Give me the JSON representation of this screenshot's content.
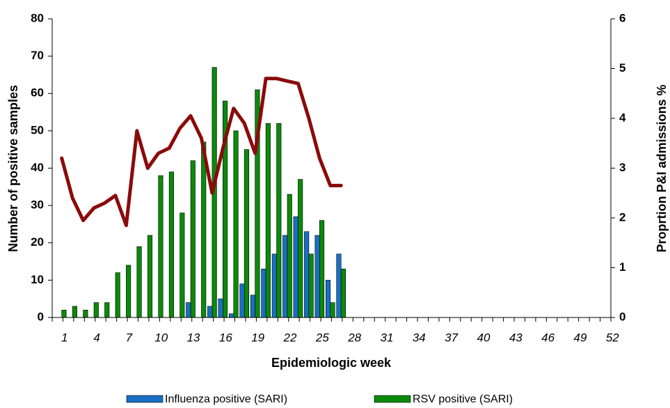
{
  "chart_data": {
    "type": "bar",
    "x_label": "Epidemiologic week",
    "y_label": "Number of positive samples",
    "y2_label": "Proprtion P&I admissions %",
    "categories": [
      "1",
      null,
      null,
      "4",
      null,
      null,
      "7",
      null,
      null,
      "10",
      null,
      null,
      "13",
      null,
      null,
      "16",
      null,
      null,
      "19",
      null,
      null,
      "22",
      null,
      null,
      "25",
      null,
      null,
      "28",
      null,
      null,
      "31",
      null,
      null,
      "34",
      null,
      null,
      "37",
      null,
      null,
      "40",
      null,
      null,
      "43",
      null,
      null,
      "46",
      null,
      null,
      "49",
      null,
      null,
      "52"
    ],
    "ylim": [
      0,
      80
    ],
    "yticks": [
      0,
      10,
      20,
      30,
      40,
      50,
      60,
      70,
      80
    ],
    "y2lim": [
      0,
      6
    ],
    "y2ticks": [
      0,
      1,
      2,
      3,
      4,
      5,
      6
    ],
    "legend": "bottom",
    "series": [
      {
        "name": "Influenza positive (SARI)",
        "type": "bar",
        "color": "#1a6fc4",
        "values": [
          0,
          0,
          0,
          0,
          0,
          0,
          0,
          0,
          0,
          0,
          0,
          0,
          4,
          0,
          3,
          5,
          1,
          9,
          6,
          13,
          17,
          22,
          27,
          23,
          22,
          10,
          17,
          null,
          null,
          null,
          null,
          null,
          null,
          null,
          null,
          null,
          null,
          null,
          null,
          null,
          null,
          null,
          null,
          null,
          null,
          null,
          null,
          null,
          null,
          null,
          null,
          null
        ]
      },
      {
        "name": "RSV positive (SARI)",
        "type": "bar",
        "color": "#0a8a0a",
        "values": [
          2,
          3,
          2,
          4,
          4,
          12,
          14,
          19,
          22,
          38,
          39,
          28,
          42,
          47,
          67,
          58,
          50,
          45,
          61,
          52,
          52,
          33,
          37,
          17,
          26,
          4,
          13,
          null,
          null,
          null,
          null,
          null,
          null,
          null,
          null,
          null,
          null,
          null,
          null,
          null,
          null,
          null,
          null,
          null,
          null,
          null,
          null,
          null,
          null,
          null,
          null,
          null
        ]
      },
      {
        "type": "line",
        "axis": "y2",
        "color": "#8b0a0a",
        "values": [
          3.2,
          2.4,
          1.95,
          2.2,
          2.3,
          2.45,
          1.85,
          3.75,
          3.0,
          3.3,
          3.4,
          3.8,
          4.05,
          3.6,
          2.5,
          3.4,
          4.2,
          3.9,
          3.3,
          4.8,
          4.8,
          4.75,
          4.7,
          4.0,
          3.2,
          2.65,
          2.65,
          null,
          null,
          null,
          null,
          null,
          null,
          null,
          null,
          null,
          null,
          null,
          null,
          null,
          null,
          null,
          null,
          null,
          null,
          null,
          null,
          null,
          null,
          null,
          null,
          null
        ]
      }
    ]
  }
}
